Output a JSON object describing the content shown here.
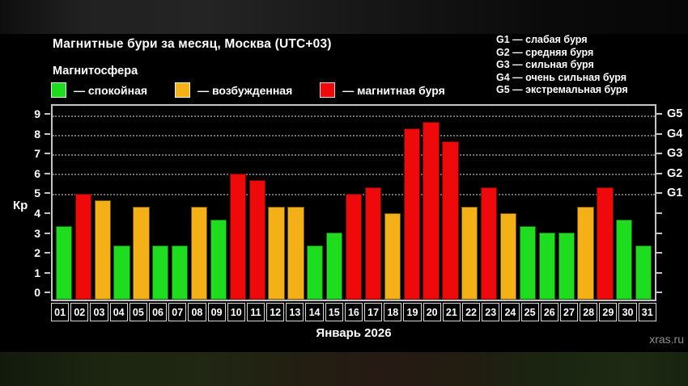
{
  "header": {
    "title": "Магнитные бури за месяц, Москва (UTC+03)"
  },
  "legend": {
    "heading": "Магнитосфера",
    "items": [
      {
        "name": "quiet",
        "label": "— спокойная",
        "color": "#1edc1e"
      },
      {
        "name": "unsettled",
        "label": "— возбужденная",
        "color": "#f3b117"
      },
      {
        "name": "storm",
        "label": "— магнитная буря",
        "color": "#ee0a0a"
      }
    ]
  },
  "storm_scale_legend": [
    "G1 — слабая буря",
    "G2 — средняя буря",
    "G3 — сильная буря",
    "G4 — очень сильная буря",
    "G5 — экстремальная буря"
  ],
  "watermark": "xras.ru",
  "colors": {
    "quiet": "#1edc1e",
    "unsettled": "#f3b117",
    "storm": "#ee0a0a",
    "background": "#000000",
    "frame": "#c4c4c4",
    "grid": "#6e6e6e",
    "text": "#ffffff",
    "watermark": "#8f8f8f"
  },
  "chart_data": {
    "type": "bar",
    "title": "Магнитные бури за месяц, Москва (UTC+03)",
    "xlabel": "Январь 2026",
    "ylabel": "Кр",
    "ylim": [
      0,
      9
    ],
    "y_ticks": [
      0,
      1,
      2,
      3,
      4,
      5,
      6,
      7,
      8,
      9
    ],
    "grid": "dotted horizontal lines at storm levels",
    "gridlines_at": [
      5,
      6,
      7,
      8,
      9
    ],
    "right_axis": [
      {
        "kp": 5,
        "label": "G1"
      },
      {
        "kp": 6,
        "label": "G2"
      },
      {
        "kp": 7,
        "label": "G3"
      },
      {
        "kp": 8,
        "label": "G4"
      },
      {
        "kp": 9,
        "label": "G5"
      }
    ],
    "legend_position": "top-left",
    "categories": [
      "01",
      "02",
      "03",
      "04",
      "05",
      "06",
      "07",
      "08",
      "09",
      "10",
      "11",
      "12",
      "13",
      "14",
      "15",
      "16",
      "17",
      "18",
      "19",
      "20",
      "21",
      "22",
      "23",
      "24",
      "25",
      "26",
      "27",
      "28",
      "29",
      "30",
      "31"
    ],
    "values": [
      3.33,
      5.0,
      4.67,
      2.33,
      4.33,
      2.33,
      2.33,
      4.33,
      3.67,
      6.0,
      5.67,
      4.33,
      4.33,
      2.33,
      3.0,
      5.0,
      5.33,
      4.0,
      8.33,
      8.67,
      7.67,
      4.33,
      5.33,
      4.0,
      3.33,
      3.0,
      3.0,
      4.33,
      5.33,
      3.67,
      2.33
    ],
    "levels": [
      "quiet",
      "storm",
      "unsettled",
      "quiet",
      "unsettled",
      "quiet",
      "quiet",
      "unsettled",
      "quiet",
      "storm",
      "storm",
      "unsettled",
      "unsettled",
      "quiet",
      "quiet",
      "storm",
      "storm",
      "unsettled",
      "storm",
      "storm",
      "storm",
      "unsettled",
      "storm",
      "unsettled",
      "quiet",
      "quiet",
      "quiet",
      "unsettled",
      "storm",
      "quiet",
      "quiet"
    ]
  }
}
